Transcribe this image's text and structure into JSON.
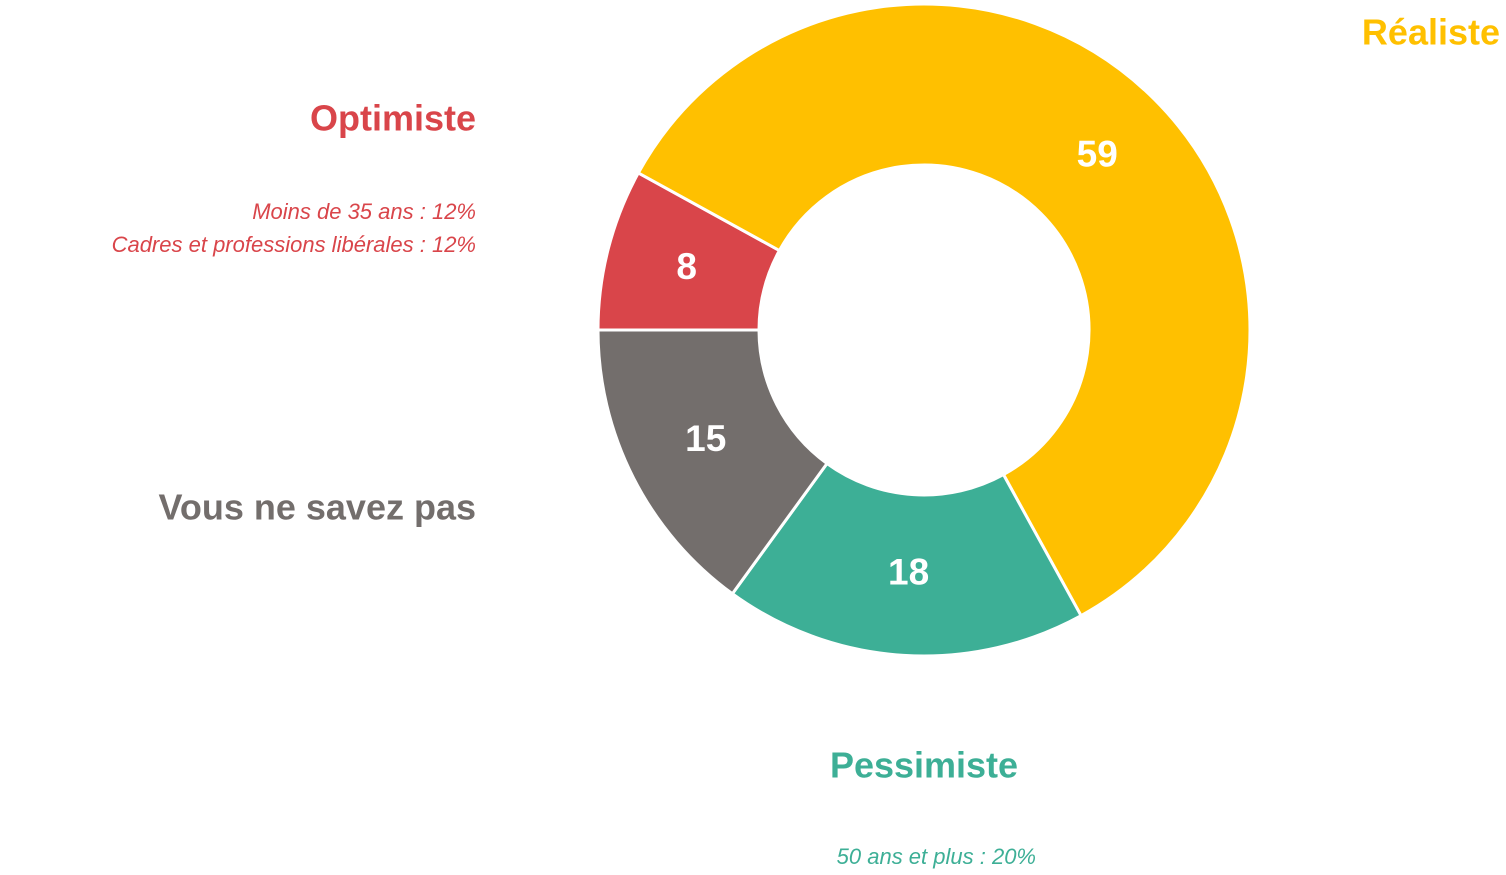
{
  "chart_data": {
    "type": "donut",
    "categories": [
      "Optimiste",
      "Réaliste",
      "Pessimiste",
      "Vous ne savez pas"
    ],
    "values": [
      8,
      59,
      18,
      15
    ],
    "colors": [
      "#d9454a",
      "#ffc000",
      "#3daf96",
      "#736e6c"
    ],
    "annotations": [
      "Moins de 35 ans : 12%",
      "Cadres et professions libérales : 12%",
      "50 ans et plus : 20%"
    ]
  }
}
